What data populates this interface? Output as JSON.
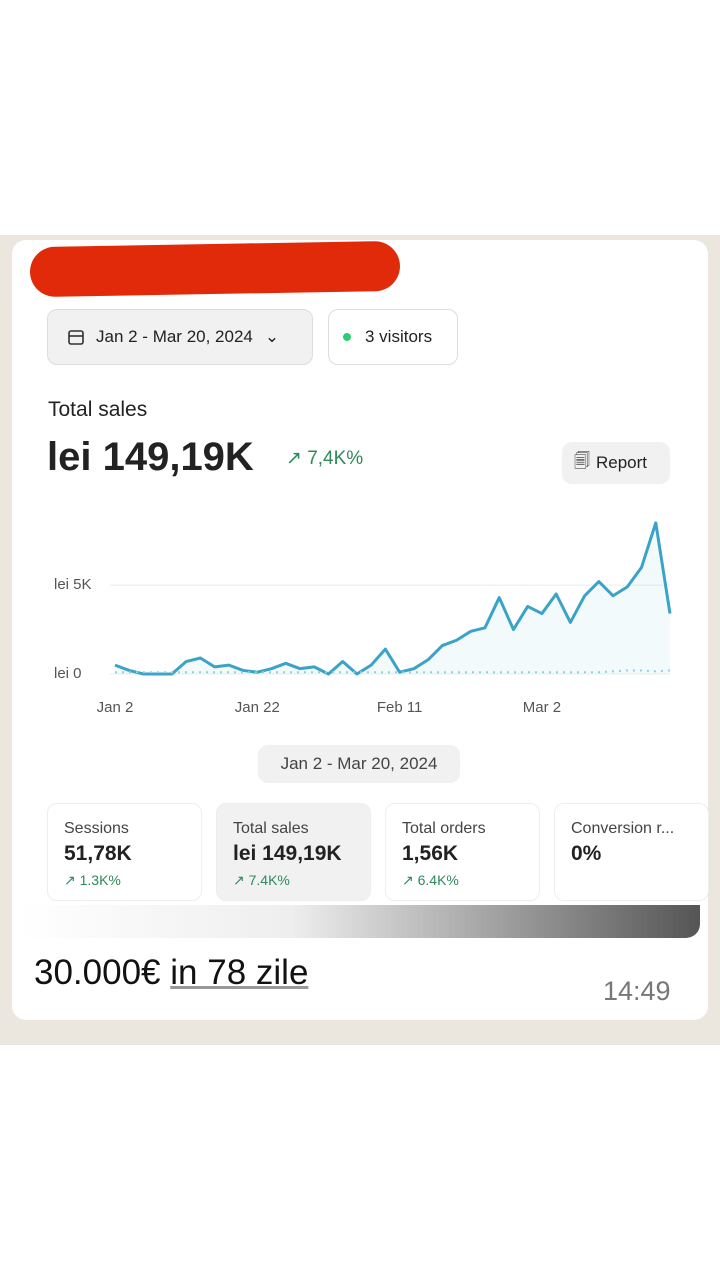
{
  "header": {
    "date_range": "Jan 2 - Mar 20, 2024",
    "visitors": "3 visitors"
  },
  "summary": {
    "label": "Total sales",
    "value": "lei 149,19K",
    "change": "7,4K%",
    "report_button": "Report"
  },
  "chart_data": {
    "type": "line",
    "categories": [
      "Jan 2",
      null,
      null,
      null,
      null,
      null,
      null,
      null,
      null,
      null,
      "Jan 22",
      null,
      null,
      null,
      null,
      null,
      null,
      null,
      null,
      null,
      "Feb 11",
      null,
      null,
      null,
      null,
      null,
      null,
      null,
      null,
      null,
      "Mar 2",
      null,
      null,
      null,
      null,
      null,
      null,
      null,
      null,
      null
    ],
    "series": [
      {
        "color": "#3aa3c7",
        "values": [
          500,
          200,
          0,
          0,
          0,
          700,
          900,
          400,
          500,
          200,
          100,
          300,
          600,
          300,
          400,
          0,
          700,
          0,
          500,
          1400,
          100,
          300,
          800,
          1600,
          1900,
          2400,
          2600,
          4300,
          2500,
          3800,
          3400,
          4500,
          2900,
          4400,
          5200,
          4400,
          4900,
          6000,
          8500,
          3400
        ]
      },
      {
        "color": "#8fd0e0",
        "values": [
          100,
          100,
          100,
          100,
          100,
          100,
          100,
          100,
          100,
          100,
          100,
          100,
          100,
          100,
          100,
          100,
          100,
          100,
          100,
          100,
          100,
          100,
          100,
          100,
          100,
          100,
          100,
          100,
          100,
          100,
          100,
          100,
          100,
          100,
          100,
          150,
          200,
          200,
          150,
          200
        ]
      }
    ],
    "ylim": [
      0,
      9000
    ],
    "yticks": [
      {
        "value": 0,
        "label": "lei 0"
      },
      {
        "value": 5000,
        "label": "lei 5K"
      }
    ],
    "grid": true,
    "range_label": "Jan 2 - Mar 20, 2024"
  },
  "cards": [
    {
      "title": "Sessions",
      "value": "51,78K",
      "change": "1.3K%"
    },
    {
      "title": "Total sales",
      "value": "lei 149,19K",
      "change": "7.4K%"
    },
    {
      "title": "Total orders",
      "value": "1,56K",
      "change": "6.4K%"
    },
    {
      "title": "Conversion r...",
      "value": "0%"
    }
  ],
  "message": {
    "text": "30.000€",
    "link": "in 78 zile",
    "time": "14:49"
  }
}
